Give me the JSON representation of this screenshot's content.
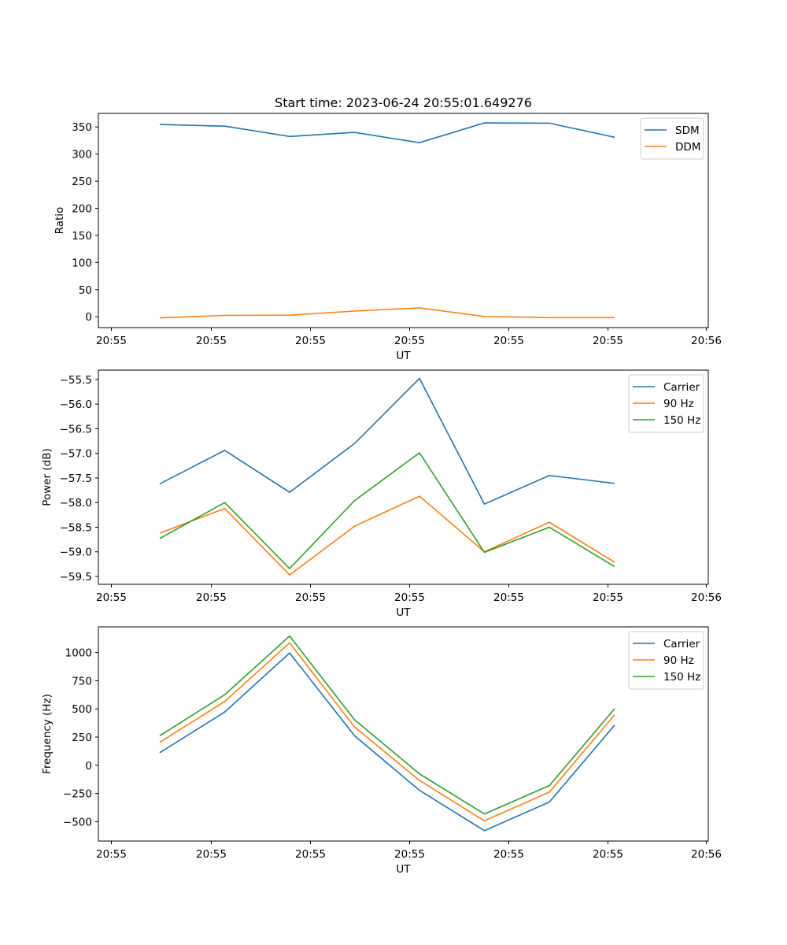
{
  "chart_data": [
    {
      "type": "line",
      "title": "Start time: 2023-06-24 20:55:01.649276",
      "xlabel": "UT",
      "ylabel": "Ratio",
      "x_tick_labels": [
        "20:55",
        "20:55",
        "20:55",
        "20:55",
        "20:55",
        "20:55",
        "20:55",
        "20:56"
      ],
      "y_ticks": [
        0,
        50,
        100,
        150,
        200,
        250,
        300,
        350
      ],
      "ylim": [
        -20,
        375
      ],
      "legend_position": "top-right",
      "series": [
        {
          "name": "SDM",
          "color": "#1f77b4",
          "values": [
            354.5,
            351.5,
            332.5,
            340.0,
            321.0,
            357.5,
            357.0,
            331.0
          ]
        },
        {
          "name": "DDM",
          "color": "#ff7f0e",
          "values": [
            -2.0,
            2.5,
            3.0,
            10.5,
            16.5,
            0.5,
            -1.5,
            -1.5
          ]
        }
      ]
    },
    {
      "type": "line",
      "title": "",
      "xlabel": "UT",
      "ylabel": "Power (dB)",
      "x_tick_labels": [
        "20:55",
        "20:55",
        "20:55",
        "20:55",
        "20:55",
        "20:55",
        "20:55",
        "20:56"
      ],
      "y_ticks": [
        -59.5,
        -59.0,
        -58.5,
        -58.0,
        -57.5,
        -57.0,
        -56.5,
        -56.0,
        -55.5
      ],
      "ylim": [
        -59.66,
        -55.31
      ],
      "legend_position": "top-right",
      "series": [
        {
          "name": "Carrier",
          "color": "#1f77b4",
          "values": [
            -57.62,
            -56.94,
            -57.79,
            -56.8,
            -55.48,
            -58.03,
            -57.45,
            -57.61
          ]
        },
        {
          "name": "90 Hz",
          "color": "#ff7f0e",
          "values": [
            -58.62,
            -58.12,
            -59.47,
            -58.48,
            -57.87,
            -59.0,
            -58.4,
            -59.21
          ]
        },
        {
          "name": "150 Hz",
          "color": "#2ca02c",
          "values": [
            -58.73,
            -58.0,
            -59.34,
            -57.96,
            -56.99,
            -59.01,
            -58.5,
            -59.3
          ]
        }
      ]
    },
    {
      "type": "line",
      "title": "",
      "xlabel": "UT",
      "ylabel": "Frequency (Hz)",
      "x_tick_labels": [
        "20:55",
        "20:55",
        "20:55",
        "20:55",
        "20:55",
        "20:55",
        "20:55",
        "20:56"
      ],
      "y_ticks": [
        -500,
        -250,
        0,
        250,
        500,
        750,
        1000
      ],
      "ylim": [
        -672,
        1228
      ],
      "legend_position": "top-right",
      "series": [
        {
          "name": "Carrier",
          "color": "#1f77b4",
          "values": [
            112,
            472,
            996,
            262,
            -222,
            -580,
            -326,
            356
          ]
        },
        {
          "name": "90 Hz",
          "color": "#ff7f0e",
          "values": [
            204,
            566,
            1086,
            340,
            -135,
            -492,
            -238,
            448
          ]
        },
        {
          "name": "150 Hz",
          "color": "#2ca02c",
          "values": [
            262,
            626,
            1146,
            404,
            -76,
            -432,
            -180,
            502
          ]
        }
      ]
    }
  ]
}
